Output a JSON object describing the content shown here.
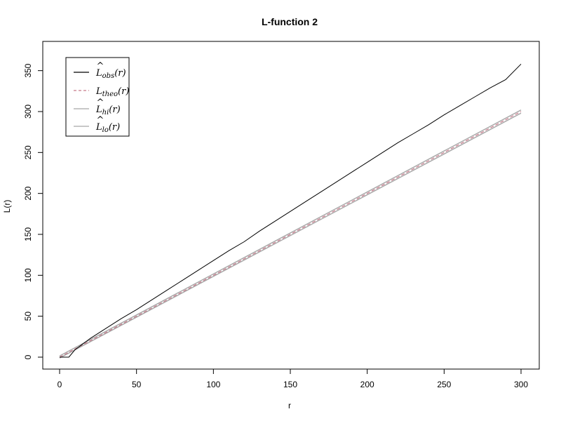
{
  "chart_data": {
    "type": "line",
    "title": "L-function 2",
    "xlabel": "r",
    "ylabel": "L(r)",
    "xlim": [
      0,
      300
    ],
    "ylim": [
      0,
      360
    ],
    "xticks": [
      0,
      50,
      100,
      150,
      200,
      250,
      300
    ],
    "yticks": [
      0,
      50,
      100,
      150,
      200,
      250,
      300,
      350
    ],
    "grid": false,
    "legend_position": "top-left",
    "series": [
      {
        "key": "obs",
        "label_main": "L",
        "label_sub": "obs",
        "label_arg": "(r)",
        "hat": true,
        "color": "#000000",
        "dash": "solid",
        "x": [
          0,
          6,
          10,
          15,
          20,
          30,
          40,
          50,
          55,
          60,
          70,
          80,
          90,
          100,
          110,
          120,
          130,
          140,
          150,
          160,
          170,
          180,
          190,
          200,
          210,
          220,
          230,
          240,
          250,
          260,
          270,
          280,
          290,
          300
        ],
        "y": [
          0,
          0,
          9,
          16,
          23,
          35,
          47,
          58,
          64,
          70,
          82,
          94,
          106,
          118,
          130,
          141,
          154,
          166,
          178,
          190,
          202,
          214,
          226,
          238,
          250,
          262,
          273,
          284,
          296,
          307,
          318,
          329,
          339,
          358
        ]
      },
      {
        "key": "theo",
        "label_main": "L",
        "label_sub": "theo",
        "label_arg": "(r)",
        "hat": false,
        "color": "#c77b8b",
        "dash": "dashed",
        "x": [
          0,
          300
        ],
        "y": [
          0,
          300
        ]
      },
      {
        "key": "hi",
        "label_main": "L",
        "label_sub": "hi",
        "label_arg": "(r)",
        "hat": true,
        "color": "#a6a6a6",
        "dash": "solid",
        "x": [
          0,
          300
        ],
        "y": [
          1.5,
          302
        ]
      },
      {
        "key": "lo",
        "label_main": "L",
        "label_sub": "lo",
        "label_arg": "(r)",
        "hat": true,
        "color": "#a6a6a6",
        "dash": "solid",
        "x": [
          0,
          300
        ],
        "y": [
          -1,
          298
        ]
      }
    ]
  }
}
